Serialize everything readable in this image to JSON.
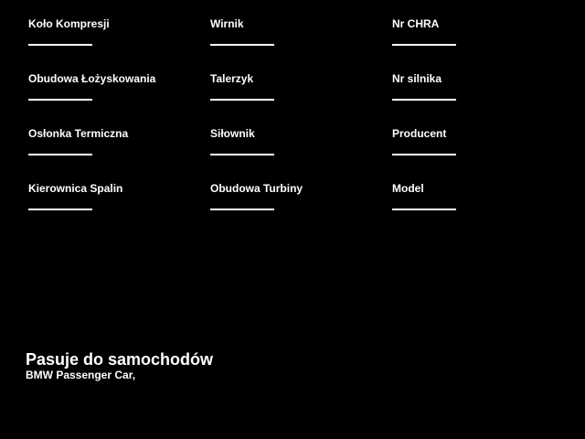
{
  "page": {
    "background_color": "#000000",
    "text_color": "#ffffff"
  },
  "fields": [
    {
      "label": "Koło Kompresji"
    },
    {
      "label": "Wirnik"
    },
    {
      "label": "Nr CHRA"
    },
    {
      "label": "Obudowa Łożyskowania"
    },
    {
      "label": "Talerzyk"
    },
    {
      "label": "Nr silnika"
    },
    {
      "label": "Osłonka Termiczna"
    },
    {
      "label": "Siłownik"
    },
    {
      "label": "Producent"
    },
    {
      "label": "Kierownica Spalin"
    },
    {
      "label": "Obudowa Turbiny"
    },
    {
      "label": "Model"
    }
  ],
  "fits": {
    "heading": "Pasuje do samochodów",
    "vehicles": "BMW Passenger Car,"
  }
}
